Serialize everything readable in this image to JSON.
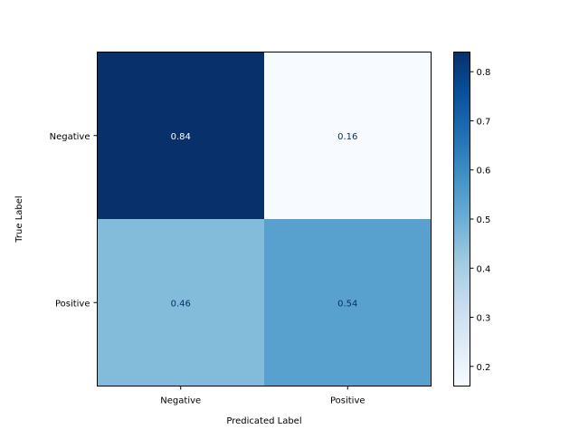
{
  "chart_data": {
    "type": "heatmap",
    "title": "",
    "xlabel": "Predicated Label",
    "ylabel": "True Label",
    "x_categories": [
      "Negative",
      "Positive"
    ],
    "y_categories": [
      "Negative",
      "Positive"
    ],
    "values": [
      [
        0.84,
        0.16
      ],
      [
        0.46,
        0.54
      ]
    ],
    "cell_labels": [
      [
        "0.84",
        "0.16"
      ],
      [
        "0.46",
        "0.54"
      ]
    ],
    "colormap": "Blues",
    "color_range": [
      0.16,
      0.84
    ],
    "colorbar": {
      "ticks": [
        0.2,
        0.3,
        0.4,
        0.5,
        0.6,
        0.7,
        0.8
      ],
      "tick_labels": [
        "0.2",
        "0.3",
        "0.4",
        "0.5",
        "0.6",
        "0.7",
        "0.8"
      ]
    },
    "grid": false
  }
}
